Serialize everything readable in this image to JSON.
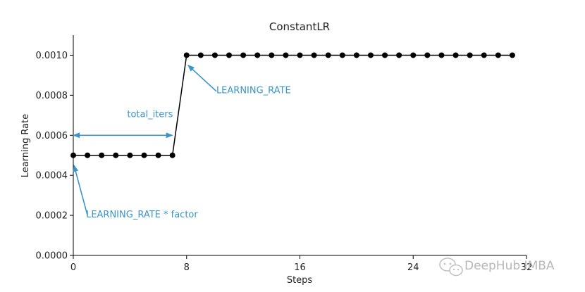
{
  "chart_data": {
    "type": "line",
    "title": "ConstantLR",
    "xlabel": "Steps",
    "ylabel": "Learning Rate",
    "xlim": [
      0,
      32
    ],
    "ylim": [
      0,
      0.0011
    ],
    "grid": false,
    "legend": "none",
    "xticks": [
      0,
      8,
      16,
      24,
      32
    ],
    "xtick_labels": [
      "0",
      "8",
      "16",
      "24",
      "32"
    ],
    "yticks": [
      0,
      0.0002,
      0.0004,
      0.0006,
      0.0008,
      0.001
    ],
    "ytick_labels": [
      "0.0000",
      "0.0002",
      "0.0004",
      "0.0006",
      "0.0008",
      "0.0010"
    ],
    "series": [
      {
        "x": [
          0,
          1,
          2,
          3,
          4,
          5,
          6,
          7,
          8,
          9,
          10,
          11,
          12,
          13,
          14,
          15,
          16,
          17,
          18,
          19,
          20,
          21,
          22,
          23,
          24,
          25,
          26,
          27,
          28,
          29,
          30,
          31
        ],
        "y": [
          0.0005,
          0.0005,
          0.0005,
          0.0005,
          0.0005,
          0.0005,
          0.0005,
          0.0005,
          0.001,
          0.001,
          0.001,
          0.001,
          0.001,
          0.001,
          0.001,
          0.001,
          0.001,
          0.001,
          0.001,
          0.001,
          0.001,
          0.001,
          0.001,
          0.001,
          0.001,
          0.001,
          0.001,
          0.001,
          0.001,
          0.001,
          0.001,
          0.001
        ]
      }
    ],
    "annotations": [
      {
        "text": "total_iters",
        "kind": "double-arrow",
        "from": [
          0,
          0.0006
        ],
        "to": [
          7,
          0.0006
        ],
        "text_at": [
          3.8,
          0.00069
        ]
      },
      {
        "text": "LEARNING_RATE",
        "kind": "arrow",
        "from": [
          10.1,
          0.00082
        ],
        "to": [
          8.1,
          0.00095
        ],
        "text_at": [
          10.1,
          0.00081
        ]
      },
      {
        "text": "LEARNING_RATE * factor",
        "kind": "arrow",
        "from": [
          1.0,
          0.0002
        ],
        "to": [
          0.05,
          0.00045
        ],
        "text_at": [
          0.9,
          0.00019
        ]
      }
    ],
    "colors": {
      "line": "#000000",
      "annotation": "#3d94c9",
      "axis": "#000000"
    }
  },
  "watermark": {
    "text": "DeepHub IMBA",
    "icon": "wechat-icon"
  }
}
